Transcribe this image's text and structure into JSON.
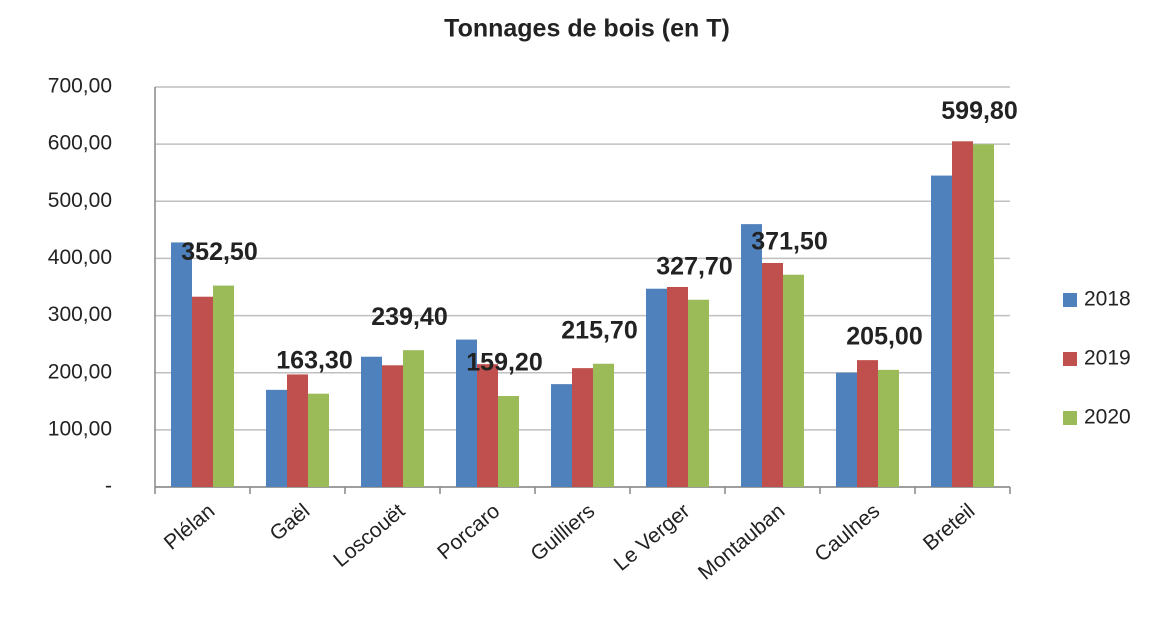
{
  "chart_data": {
    "type": "bar",
    "title": "Tonnages de bois (en T)",
    "categories": [
      "Plélan",
      "Gaël",
      "Loscouët",
      "Porcaro",
      "Guilliers",
      "Le Verger",
      "Montauban",
      "Caulnes",
      "Breteil"
    ],
    "series": [
      {
        "name": "2018",
        "color": "#4f81bd",
        "values": [
          428,
          170,
          228,
          258,
          180,
          347,
          460,
          200,
          545
        ]
      },
      {
        "name": "2019",
        "color": "#c0504d",
        "values": [
          333,
          197,
          213,
          215,
          208,
          350,
          392,
          222,
          605
        ]
      },
      {
        "name": "2020",
        "color": "#9bbb59",
        "values": [
          352.5,
          163.3,
          239.4,
          159.2,
          215.7,
          327.7,
          371.5,
          205,
          599.8
        ],
        "value_labels": [
          "352,50",
          "163,30",
          "239,40",
          "159,20",
          "215,70",
          "327,70",
          "371,50",
          "205,00",
          "599,80"
        ]
      }
    ],
    "ylim": [
      0,
      700
    ],
    "yticks": [
      {
        "value": 0,
        "label": "-"
      },
      {
        "value": 100,
        "label": "100,00"
      },
      {
        "value": 200,
        "label": "200,00"
      },
      {
        "value": 300,
        "label": "300,00"
      },
      {
        "value": 400,
        "label": "400,00"
      },
      {
        "value": 500,
        "label": "500,00"
      },
      {
        "value": 600,
        "label": "600,00"
      },
      {
        "value": 700,
        "label": "700,00"
      }
    ],
    "grid": true,
    "legend": "right"
  }
}
